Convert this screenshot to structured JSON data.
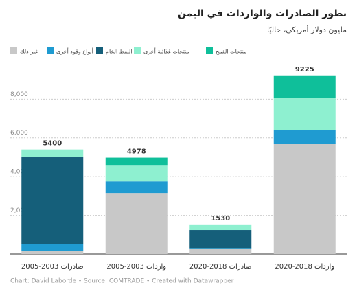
{
  "chart_data": {
    "type": "stacked-bar",
    "title": "تطور الصادرات والواردات في اليمن",
    "subtitle": "مليون دولار أمريكي، حاليًا",
    "categories": [
      "صادرات 2003-2005",
      "واردات 2003-2005",
      "صادرات 2018-2020",
      "واردات 2018-2020"
    ],
    "series": [
      {
        "name": "غير ذلك",
        "color": "#c8c8c8",
        "values": [
          150,
          3150,
          250,
          5700
        ]
      },
      {
        "name": "أنواع وقود أخرى",
        "color": "#1f9bd1",
        "values": [
          350,
          600,
          60,
          700
        ]
      },
      {
        "name": "النفط الخام",
        "color": "#155f7a",
        "values": [
          4500,
          0,
          930,
          0
        ]
      },
      {
        "name": "منتجات غذائية أخرى",
        "color": "#8ef0d0",
        "values": [
          400,
          850,
          290,
          1650
        ]
      },
      {
        "name": "منتجات القمح",
        "color": "#0fbf9a",
        "values": [
          0,
          378,
          0,
          1175
        ]
      }
    ],
    "totals": [
      5400,
      4978,
      1530,
      9225
    ],
    "ylim": [
      0,
      9500
    ],
    "yticks": [
      {
        "value": 2000,
        "label": "2,000"
      },
      {
        "value": 4000,
        "label": "4,000"
      },
      {
        "value": 6000,
        "label": "6,000"
      },
      {
        "value": 8000,
        "label": "8,000"
      }
    ],
    "grid": true,
    "source": "Chart: David Laborde • Source: COMTRADE • Created with Datawrapper"
  }
}
